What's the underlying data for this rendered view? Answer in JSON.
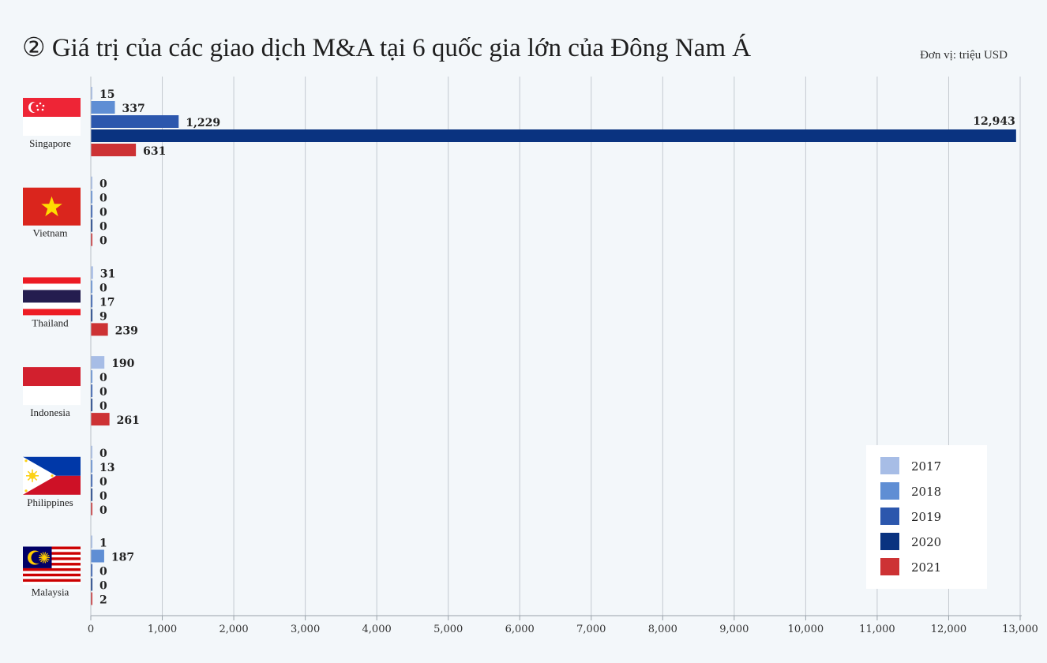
{
  "header": {
    "title": "② Giá trị của các giao dịch M&A tại 6 quốc gia lớn của Đông Nam Á",
    "unit": "Đơn vị: triệu USD"
  },
  "chart_data": {
    "type": "bar",
    "orientation": "horizontal",
    "categories": [
      "Singapore",
      "Vietnam",
      "Thailand",
      "Indonesia",
      "Philippines",
      "Malaysia"
    ],
    "series": [
      {
        "name": "2017",
        "color": "#a7bde6",
        "values": [
          15,
          0,
          31,
          190,
          0,
          1
        ]
      },
      {
        "name": "2018",
        "color": "#5f8ed4",
        "values": [
          337,
          0,
          0,
          0,
          13,
          187
        ]
      },
      {
        "name": "2019",
        "color": "#2c57ad",
        "values": [
          1229,
          0,
          17,
          0,
          0,
          0
        ]
      },
      {
        "name": "2020",
        "color": "#0a3380",
        "values": [
          12943,
          0,
          9,
          0,
          0,
          0
        ]
      },
      {
        "name": "2021",
        "color": "#cd3234",
        "values": [
          631,
          0,
          239,
          261,
          0,
          2
        ]
      }
    ],
    "data_labels": [
      [
        "15",
        "337",
        "1,229",
        "12,943",
        "631"
      ],
      [
        "0",
        "0",
        "0",
        "0",
        "0"
      ],
      [
        "31",
        "0",
        "17",
        "9",
        "239"
      ],
      [
        "190",
        "0",
        "0",
        "0",
        "261"
      ],
      [
        "0",
        "13",
        "0",
        "0",
        "0"
      ],
      [
        "1",
        "187",
        "0",
        "0",
        "2"
      ]
    ],
    "xlim": [
      0,
      13000
    ],
    "xticks": [
      0,
      1000,
      2000,
      3000,
      4000,
      5000,
      6000,
      7000,
      8000,
      9000,
      10000,
      11000,
      12000,
      13000
    ],
    "xtick_labels": [
      "0",
      "1,000",
      "2,000",
      "3,000",
      "4,000",
      "5,000",
      "6,000",
      "7,000",
      "8,000",
      "9,000",
      "10,000",
      "11,000",
      "12,000",
      "13,000"
    ],
    "grid": true,
    "legend_position": "bottom-right",
    "flags": [
      "singapore-flag-icon",
      "vietnam-flag-icon",
      "thailand-flag-icon",
      "indonesia-flag-icon",
      "philippines-flag-icon",
      "malaysia-flag-icon"
    ]
  }
}
